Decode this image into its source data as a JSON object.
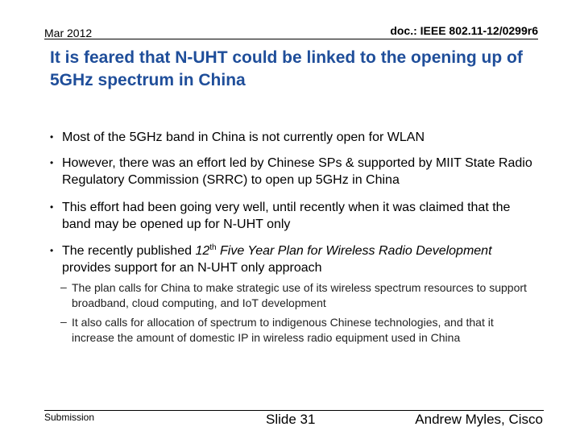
{
  "header": {
    "date": "Mar 2012",
    "doc_id": "doc.: IEEE 802.11-12/0299r6"
  },
  "title": "It is feared that N-UHT could be linked to the opening up of 5GHz spectrum in China",
  "bullet_marker": "•",
  "sub_marker": "–",
  "bullets": [
    "Most of the 5GHz band in China is not currently open for WLAN",
    "However, there was an effort led by Chinese SPs & supported by MIIT State Radio Regulatory Commission (SRRC) to open up 5GHz in China",
    "This effort had been going very well, until recently when it was claimed that the band may be opened up for N-UHT only",
    [
      "The recently published ",
      "12",
      "th",
      " Five Year Plan for Wireless Radio Development",
      " provides support for an N-UHT only approach"
    ]
  ],
  "sub_bullets": [
    "The plan calls for China to make strategic use of its wireless spectrum resources to support broadband, cloud computing, and IoT development",
    "It also calls for allocation of spectrum to indigenous Chinese technologies, and that it increase the amount of domestic IP in wireless radio equipment used in China"
  ],
  "footer": {
    "left": "Submission",
    "center": "Slide 31",
    "right": "Andrew Myles, Cisco"
  }
}
